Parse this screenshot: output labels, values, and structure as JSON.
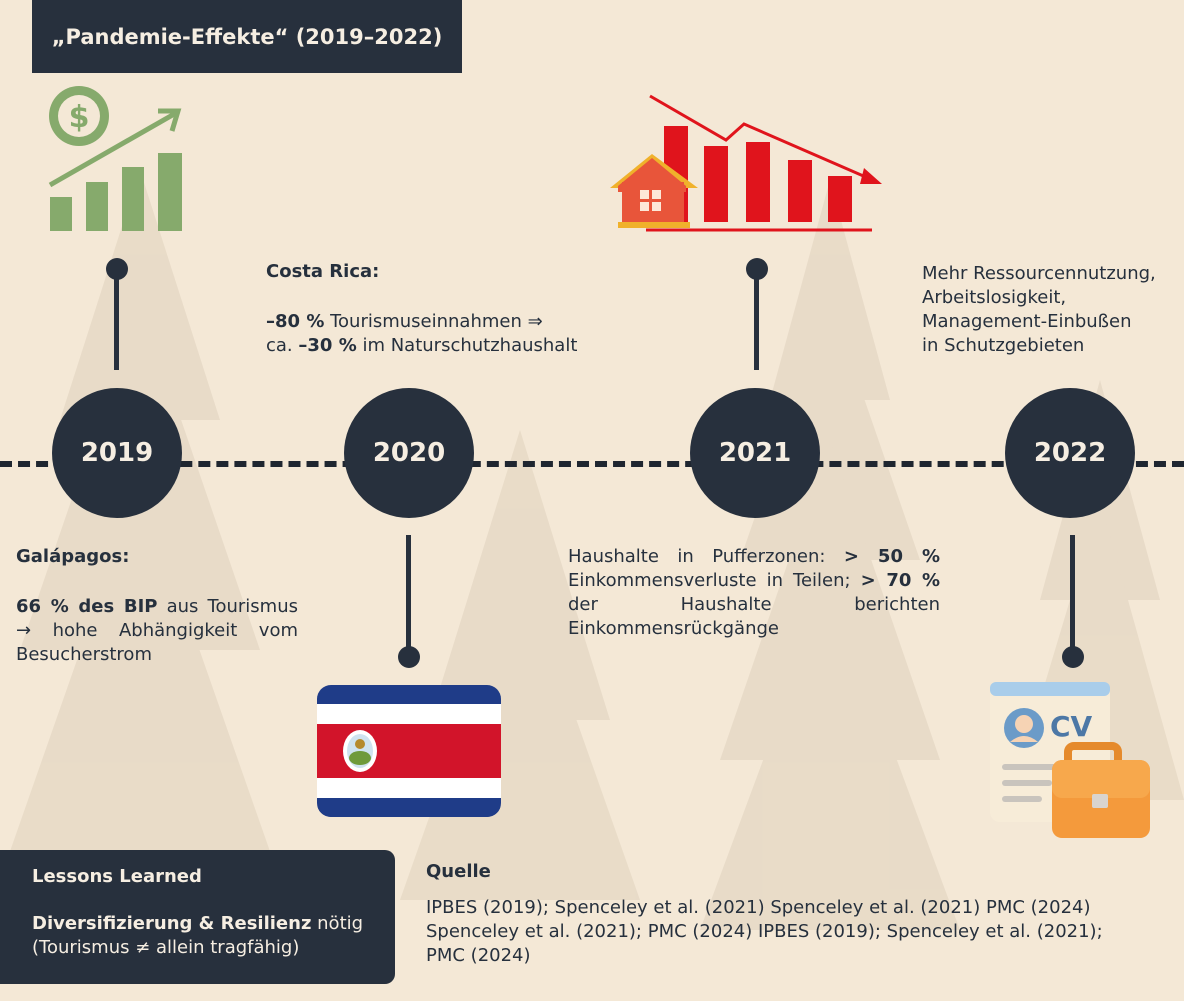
{
  "title": "„Pandemie-Effekte“ (2019–2022)",
  "years": [
    "2019",
    "2020",
    "2021",
    "2022"
  ],
  "galapagos": {
    "heading": "Galápagos:",
    "bold": "66 % des BIP",
    "rest1": " aus Tourismus",
    "rest2": "→ hohe Abhängigkeit vom Besucherstrom"
  },
  "costa_rica": {
    "heading": "Costa Rica:",
    "bold1": "–80 %",
    "rest1": " Tourismuseinnahmen ⇒",
    "pre2": "ca. ",
    "bold2": "–30 %",
    "rest2": " im Naturschutzhaushalt"
  },
  "households": {
    "pre": "Haushalte in Pufferzonen: ",
    "bold1": "> 50 %",
    "mid": " Einkommensverluste in Teilen; ",
    "bold2": "> 70 %",
    "rest": " der Haushalte berichten Einkommensrückgänge"
  },
  "resources": {
    "line1": "Mehr Ressourcennutzung,",
    "line2": "Arbeitslosigkeit,",
    "line3": "Management-Einbußen",
    "line4": "in Schutzgebieten"
  },
  "lessons": {
    "title": "Lessons Learned",
    "bold": "Diversifizierung & Resilienz",
    "rest": " nötig (Tourismus ≠ allein tragfähig)"
  },
  "source": {
    "title": "Quelle",
    "text": "IPBES (2019); Spenceley et al. (2021) Spenceley et al. (2021) PMC (2024) Spenceley et al. (2021); PMC (2024) IPBES (2019); Spenceley et al. (2021); PMC (2024)"
  },
  "icons": {
    "i2019": "money-growth-chart-icon",
    "i2020": "costa-rica-flag-icon",
    "i2021": "house-decline-chart-icon",
    "i2022": "cv-briefcase-icon"
  },
  "colors": {
    "background": "#f4e8d6",
    "dark": "#27303d",
    "green": "#86aa6c",
    "red": "#e0141c",
    "flag_blue": "#1f3c88",
    "flag_red": "#d2142a"
  }
}
